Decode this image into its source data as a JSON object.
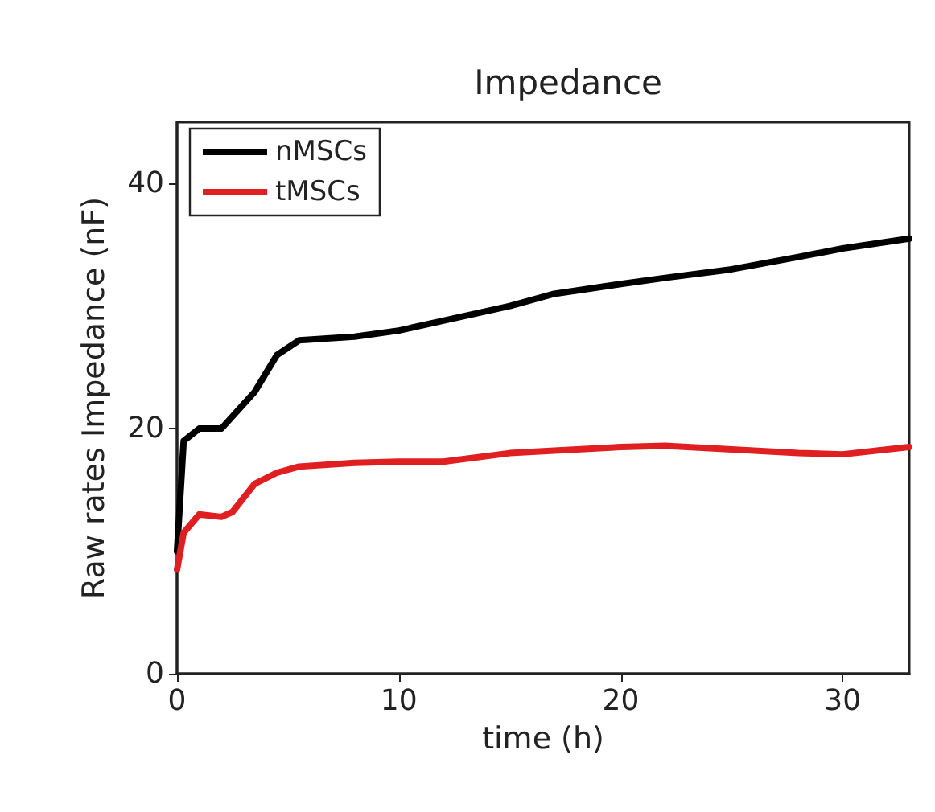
{
  "chart_data": {
    "type": "line",
    "title": "Impedance",
    "xlabel": "time (h)",
    "ylabel": "Raw rates Impedance (nF)",
    "xlim": [
      0,
      33
    ],
    "xticks": [
      0,
      10,
      20,
      30
    ],
    "ylim": [
      0,
      45
    ],
    "yticks": [
      0,
      20,
      40
    ],
    "grid": false,
    "legend": "top left",
    "marker": "none",
    "line_style": "solid",
    "x": [
      0,
      0.3,
      1,
      2,
      2.5,
      3.5,
      4.5,
      5.5,
      8,
      10,
      12,
      15,
      17,
      20,
      22,
      25,
      28,
      30,
      33
    ],
    "series": [
      {
        "name": "nMSCs",
        "color": "#000000",
        "values": [
          10,
          19,
          20,
          20,
          21,
          23,
          26,
          27.2,
          27.5,
          28,
          28.8,
          30,
          31,
          31.8,
          32.3,
          33,
          34,
          34.7,
          35.5
        ]
      },
      {
        "name": "tMSCs",
        "color": "#e02020",
        "values": [
          8.5,
          11.5,
          13,
          12.8,
          13.2,
          15.5,
          16.4,
          16.9,
          17.2,
          17.3,
          17.3,
          18,
          18.2,
          18.5,
          18.6,
          18.3,
          18,
          17.9,
          18.5
        ]
      }
    ]
  }
}
